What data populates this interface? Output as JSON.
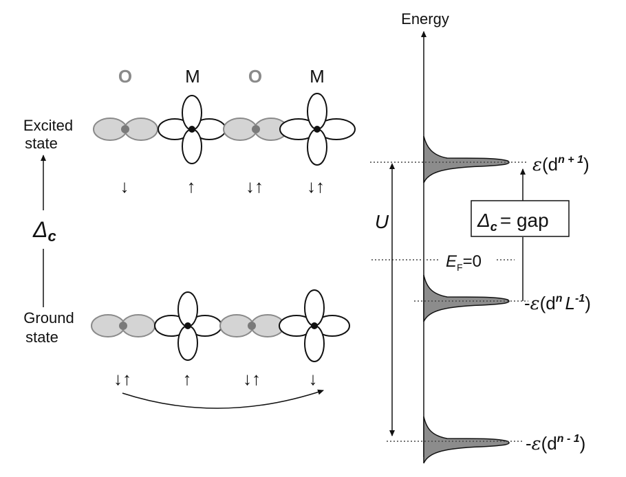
{
  "labels": {
    "atom_o": "O",
    "atom_m": "M",
    "excited_line1": "Excited",
    "excited_line2": "state",
    "ground_line1": "Ground",
    "ground_line2": "state",
    "delta_symbol": "Δ",
    "delta_sub": "c",
    "energy_axis": "Energy",
    "u_label": "U",
    "gap_box_eq": "= gap",
    "ef_main": "E",
    "ef_sub": "F",
    "ef_value": "=0",
    "eps_symbol": "ε",
    "level_top_pre": "",
    "level_top_d": "(d",
    "level_top_sup": "n + 1",
    "level_top_post": ")",
    "level_mid_pre": "-",
    "level_mid_d": "(d",
    "level_mid_sup": "n",
    "level_mid_L": "L",
    "level_mid_Lsup": "-1",
    "level_mid_post": ")",
    "level_bot_pre": "-",
    "level_bot_d": "(d",
    "level_bot_sup": "n - 1",
    "level_bot_post": ")"
  },
  "excited_spins": [
    "↓",
    "↑",
    "↓↑",
    "↓↑"
  ],
  "ground_spins": [
    "↓↑",
    "↑",
    "↓↑",
    "↓"
  ],
  "colors": {
    "o_orbital_fill": "#d4d4d4",
    "o_orbital_stroke": "#8a8a8a",
    "o_label": "#8a8a8a",
    "peak_fill": "#8c8c8c",
    "ink": "#111111"
  }
}
